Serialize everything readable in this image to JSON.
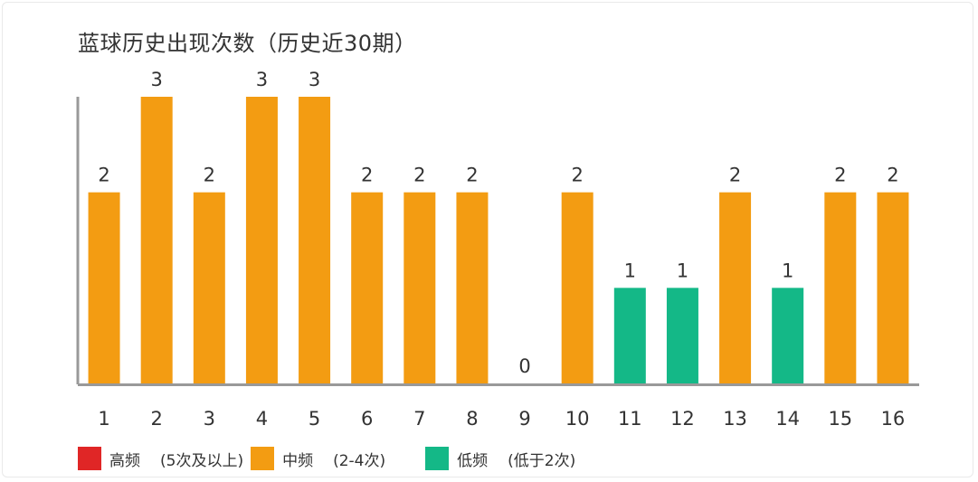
{
  "chart_data": {
    "type": "bar",
    "title": "蓝球历史出现次数（历史近30期）",
    "categories": [
      "1",
      "2",
      "3",
      "4",
      "5",
      "6",
      "7",
      "8",
      "9",
      "10",
      "11",
      "12",
      "13",
      "14",
      "15",
      "16"
    ],
    "values": [
      2,
      3,
      2,
      3,
      3,
      2,
      2,
      2,
      0,
      2,
      1,
      1,
      2,
      1,
      2,
      2
    ],
    "ylim": [
      0,
      3
    ],
    "grid": false,
    "legend_position": "bottom-left",
    "colors": {
      "high": "#e02626",
      "mid": "#f39c12",
      "low": "#14b887"
    },
    "axis_color": "#999999"
  },
  "legend": [
    {
      "key": "high",
      "label": "高频",
      "note": "(5次及以上)",
      "color": "#e02626"
    },
    {
      "key": "mid",
      "label": "中频",
      "note": "(2-4次)",
      "color": "#f39c12"
    },
    {
      "key": "low",
      "label": "低频",
      "note": "(低于2次)",
      "color": "#14b887"
    }
  ]
}
